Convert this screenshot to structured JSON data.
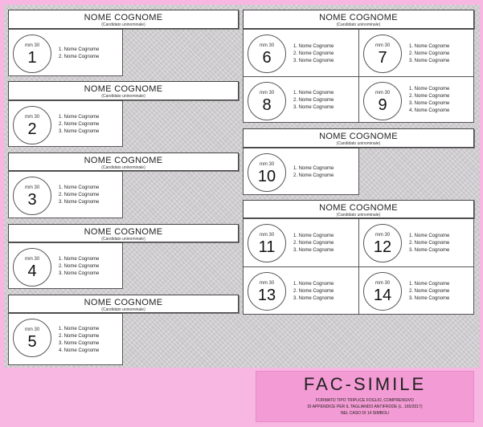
{
  "header_title": "NOME COGNOME",
  "header_subtitle": "(Candidato uninominale)",
  "circle_label": "mm 30",
  "ballot_groups": [
    {
      "symbols": [
        {
          "number": "1",
          "candidates": [
            "Nome Cognome",
            "Nome Cognome"
          ]
        }
      ]
    },
    {
      "symbols": [
        {
          "number": "2",
          "candidates": [
            "Nome Cognome",
            "Nome Cognome",
            "Nome Cognome"
          ]
        }
      ]
    },
    {
      "symbols": [
        {
          "number": "3",
          "candidates": [
            "Nome Cognome",
            "Nome Cognome",
            "Nome Cognome"
          ]
        }
      ]
    },
    {
      "symbols": [
        {
          "number": "4",
          "candidates": [
            "Nome Cognome",
            "Nome Cognome",
            "Nome Cognome"
          ]
        }
      ]
    },
    {
      "symbols": [
        {
          "number": "5",
          "candidates": [
            "Nome Cognome",
            "Nome Cognome",
            "Nome Cognome",
            "Nome Cognome"
          ]
        }
      ]
    },
    {
      "symbols": [
        {
          "number": "6",
          "candidates": [
            "Nome Cognome",
            "Nome Cognome",
            "Nome Cognome"
          ]
        },
        {
          "number": "7",
          "candidates": [
            "Nome Cognome",
            "Nome Cognome",
            "Nome Cognome"
          ]
        },
        {
          "number": "8",
          "candidates": [
            "Nome Cognome",
            "Nome Cognome",
            "Nome Cognome"
          ]
        },
        {
          "number": "9",
          "candidates": [
            "Nome Cognome",
            "Nome Cognome",
            "Nome Cognome",
            "Nome Cognome"
          ]
        }
      ]
    },
    {
      "symbols": [
        {
          "number": "10",
          "candidates": [
            "Nome Cognome",
            "Nome Cognome"
          ]
        }
      ]
    },
    {
      "symbols": [
        {
          "number": "11",
          "candidates": [
            "Nome Cognome",
            "Nome Cognome",
            "Nome Cognome"
          ]
        },
        {
          "number": "12",
          "candidates": [
            "Nome Cognome",
            "Nome Cognome",
            "Nome Cognome"
          ]
        },
        {
          "number": "13",
          "candidates": [
            "Nome Cognome",
            "Nome Cognome",
            "Nome Cognome"
          ]
        },
        {
          "number": "14",
          "candidates": [
            "Nome Cognome",
            "Nome Cognome",
            "Nome Cognome"
          ]
        }
      ]
    }
  ],
  "watermark": {
    "title": "FAC-SIMILE",
    "lines": [
      "FORMATO TIPO TRIPLICE FOGLIO, COMPRENSIVO",
      "DI APPENDICE PER IL TAGLIANDO ANTIFRODE (L. 165/2017)",
      "NEL CASO DI 14 SIMBOLI"
    ]
  },
  "colors": {
    "background": "#f8b6e2",
    "pattern": "#c9c6c9"
  }
}
